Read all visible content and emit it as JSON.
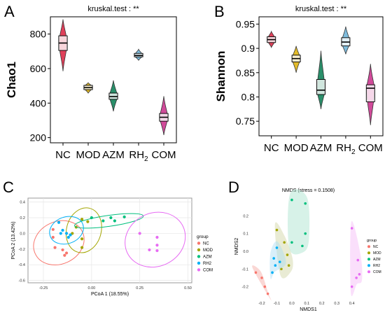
{
  "panel_letters": {
    "A": "A",
    "B": "B",
    "C": "C",
    "D": "D"
  },
  "colors": {
    "NC": "#e0405a",
    "MOD": "#e2bb2a",
    "AZM": "#2a8f6a",
    "RH2": "#7fbcdc",
    "COM": "#d14a9a",
    "pcoa_NC": "#f8766d",
    "pcoa_MOD": "#a3a500",
    "pcoa_AZM": "#00bf7d",
    "pcoa_RH2": "#00b0f6",
    "pcoa_COM": "#e76bf3",
    "nmds_NC": "#f4a6a0",
    "nmds_MOD": "#cfd3a0",
    "nmds_AZM": "#a6e3cc",
    "nmds_RH2": "#a8dcf3",
    "nmds_COM": "#f3b8f6"
  },
  "chart_data": [
    {
      "id": "A",
      "type": "violin-box",
      "title": "kruskal.test : **",
      "ylabel": "Chao1",
      "ylim": [
        170,
        900
      ],
      "yticks": [
        200,
        400,
        600,
        800
      ],
      "grid": false,
      "groups": [
        {
          "name": "NC",
          "sub": "",
          "color_key": "NC",
          "min": 585,
          "q1": 705,
          "median": 748,
          "q3": 790,
          "max": 885
        },
        {
          "name": "MOD",
          "sub": "",
          "color_key": "MOD",
          "min": 458,
          "q1": 478,
          "median": 490,
          "q3": 503,
          "max": 518
        },
        {
          "name": "AZM",
          "sub": "",
          "color_key": "AZM",
          "min": 352,
          "q1": 422,
          "median": 438,
          "q3": 458,
          "max": 532
        },
        {
          "name": "RH",
          "sub": "2",
          "color_key": "RH2",
          "min": 648,
          "q1": 668,
          "median": 676,
          "q3": 688,
          "max": 712
        },
        {
          "name": "COM",
          "sub": "",
          "color_key": "COM",
          "min": 215,
          "q1": 295,
          "median": 318,
          "q3": 340,
          "max": 440
        }
      ]
    },
    {
      "id": "B",
      "type": "violin-box",
      "title": "kruskal.test : **",
      "ylabel": "Shannon",
      "ylim": [
        0.72,
        0.965
      ],
      "yticks": [
        0.75,
        0.8,
        0.85,
        0.9,
        0.95
      ],
      "grid": false,
      "groups": [
        {
          "name": "NC",
          "sub": "",
          "color_key": "NC",
          "min": 0.902,
          "q1": 0.912,
          "median": 0.918,
          "q3": 0.924,
          "max": 0.935
        },
        {
          "name": "MOD",
          "sub": "",
          "color_key": "MOD",
          "min": 0.85,
          "q1": 0.872,
          "median": 0.879,
          "q3": 0.886,
          "max": 0.905
        },
        {
          "name": "AZM",
          "sub": "",
          "color_key": "AZM",
          "min": 0.775,
          "q1": 0.805,
          "median": 0.814,
          "q3": 0.836,
          "max": 0.895
        },
        {
          "name": "RH",
          "sub": "2",
          "color_key": "RH2",
          "min": 0.888,
          "q1": 0.905,
          "median": 0.913,
          "q3": 0.922,
          "max": 0.945
        },
        {
          "name": "COM",
          "sub": "",
          "color_key": "COM",
          "min": 0.742,
          "q1": 0.79,
          "median": 0.818,
          "q3": 0.825,
          "max": 0.868
        }
      ]
    },
    {
      "id": "C",
      "type": "scatter",
      "title": "",
      "xlabel": "PCoA 1 (18.55%)",
      "ylabel": "PCoA 2 (13.42%)",
      "xlim": [
        -0.33,
        0.52
      ],
      "ylim": [
        -0.63,
        0.45
      ],
      "xticks": [
        -0.25,
        0.0,
        0.25,
        0.5
      ],
      "xticklabels": [
        "-0.25",
        "0.00",
        "0.25",
        "0.50"
      ],
      "yticks": [
        -0.6,
        -0.4,
        -0.2,
        0.0,
        0.2,
        0.4
      ],
      "yticklabels": [
        "-0.6",
        "-0.4",
        "-0.2",
        "0.0",
        "0.2",
        "0.4"
      ],
      "grid": true,
      "legend": {
        "title": "group",
        "position": "right",
        "items": [
          "NC",
          "MOD",
          "AZM",
          "RH2",
          "COM"
        ]
      },
      "series": [
        {
          "name": "NC",
          "color_key": "pcoa_NC",
          "points": [
            [
              -0.2,
              0.05
            ],
            [
              -0.2,
              -0.05
            ],
            [
              -0.19,
              -0.18
            ],
            [
              -0.15,
              -0.21
            ],
            [
              -0.14,
              -0.28
            ],
            [
              -0.13,
              -0.25
            ]
          ],
          "ellipse": {
            "cx": -0.17,
            "cy": -0.12,
            "rx": 0.135,
            "ry": 0.27,
            "angle": -25
          }
        },
        {
          "name": "MOD",
          "color_key": "pcoa_MOD",
          "points": [
            [
              -0.08,
              0.08
            ],
            [
              -0.05,
              0.18
            ],
            [
              -0.02,
              0.15
            ],
            [
              -0.05,
              -0.07
            ],
            [
              -0.1,
              0.0
            ],
            [
              -0.05,
              -0.18
            ]
          ],
          "ellipse": {
            "cx": -0.04,
            "cy": 0.04,
            "rx": 0.09,
            "ry": 0.29,
            "angle": 15
          }
        },
        {
          "name": "AZM",
          "color_key": "pcoa_AZM",
          "points": [
            [
              0.0,
              0.2
            ],
            [
              0.06,
              0.16
            ],
            [
              0.1,
              0.2
            ],
            [
              0.12,
              0.16
            ],
            [
              0.17,
              0.21
            ]
          ],
          "ellipse": {
            "cx": 0.09,
            "cy": 0.16,
            "rx": 0.18,
            "ry": 0.07,
            "angle": -8
          }
        },
        {
          "name": "RH2",
          "color_key": "pcoa_RH2",
          "points": [
            [
              -0.17,
              0.14
            ],
            [
              -0.16,
              0.0
            ],
            [
              -0.13,
              0.0
            ],
            [
              -0.12,
              -0.05
            ],
            [
              -0.15,
              0.04
            ],
            [
              -0.11,
              -0.02
            ]
          ],
          "ellipse": {
            "cx": -0.13,
            "cy": 0.04,
            "rx": 0.09,
            "ry": 0.17,
            "angle": -20
          }
        },
        {
          "name": "COM",
          "color_key": "pcoa_COM",
          "points": [
            [
              0.25,
              0.0
            ],
            [
              0.34,
              -0.05
            ],
            [
              0.34,
              -0.15
            ],
            [
              0.3,
              -0.21
            ],
            [
              0.34,
              -0.22
            ]
          ],
          "ellipse": {
            "cx": 0.33,
            "cy": -0.08,
            "rx": 0.16,
            "ry": 0.34,
            "angle": -25
          }
        }
      ]
    },
    {
      "id": "D",
      "type": "scatter",
      "title": "NMDS (stress = 0.1508)",
      "xlabel": "NMDS1",
      "ylabel": "NMDS2",
      "xlim": [
        -0.27,
        0.49
      ],
      "ylim": [
        -0.265,
        0.32
      ],
      "xticks": [
        -0.2,
        -0.1,
        0.0,
        0.1,
        0.2,
        0.3,
        0.4
      ],
      "xticklabels": [
        "-0.2",
        "-0.1",
        "0.0",
        "0.1",
        "0.2",
        "0.3",
        "0.4"
      ],
      "yticks": [
        -0.2,
        -0.1,
        0.0,
        0.1,
        0.2
      ],
      "yticklabels": [
        "-0.2",
        "-0.1",
        "0.0",
        "0.1",
        "0.2"
      ],
      "grid": false,
      "legend": {
        "title": "group",
        "position": "right",
        "items": [
          "NC",
          "MOD",
          "AZM",
          "RH2",
          "COM"
        ]
      },
      "series": [
        {
          "name": "NC",
          "color_key": "nmds_NC",
          "points": [
            [
              -0.24,
              -0.12
            ],
            [
              -0.2,
              -0.15
            ],
            [
              -0.18,
              -0.2
            ],
            [
              -0.16,
              -0.24
            ]
          ]
        },
        {
          "name": "MOD",
          "color_key": "nmds_MOD",
          "points": [
            [
              -0.1,
              0.12
            ],
            [
              -0.05,
              0.05
            ],
            [
              -0.03,
              -0.02
            ],
            [
              -0.02,
              -0.08
            ],
            [
              -0.07,
              -0.1
            ]
          ]
        },
        {
          "name": "AZM",
          "color_key": "nmds_AZM",
          "points": [
            [
              0.0,
              0.29
            ],
            [
              0.09,
              0.27
            ],
            [
              0.0,
              0.05
            ],
            [
              0.07,
              0.03
            ],
            [
              0.09,
              0.1
            ]
          ]
        },
        {
          "name": "RH2",
          "color_key": "nmds_RH2",
          "points": [
            [
              -0.1,
              0.02
            ],
            [
              -0.12,
              -0.04
            ],
            [
              -0.08,
              -0.06
            ],
            [
              -0.11,
              -0.08
            ],
            [
              -0.13,
              -0.12
            ]
          ]
        },
        {
          "name": "COM",
          "color_key": "nmds_COM",
          "points": [
            [
              0.4,
              0.13
            ],
            [
              0.44,
              -0.05
            ],
            [
              0.45,
              -0.13
            ],
            [
              0.4,
              -0.2
            ],
            [
              0.43,
              -0.15
            ]
          ]
        }
      ]
    }
  ]
}
